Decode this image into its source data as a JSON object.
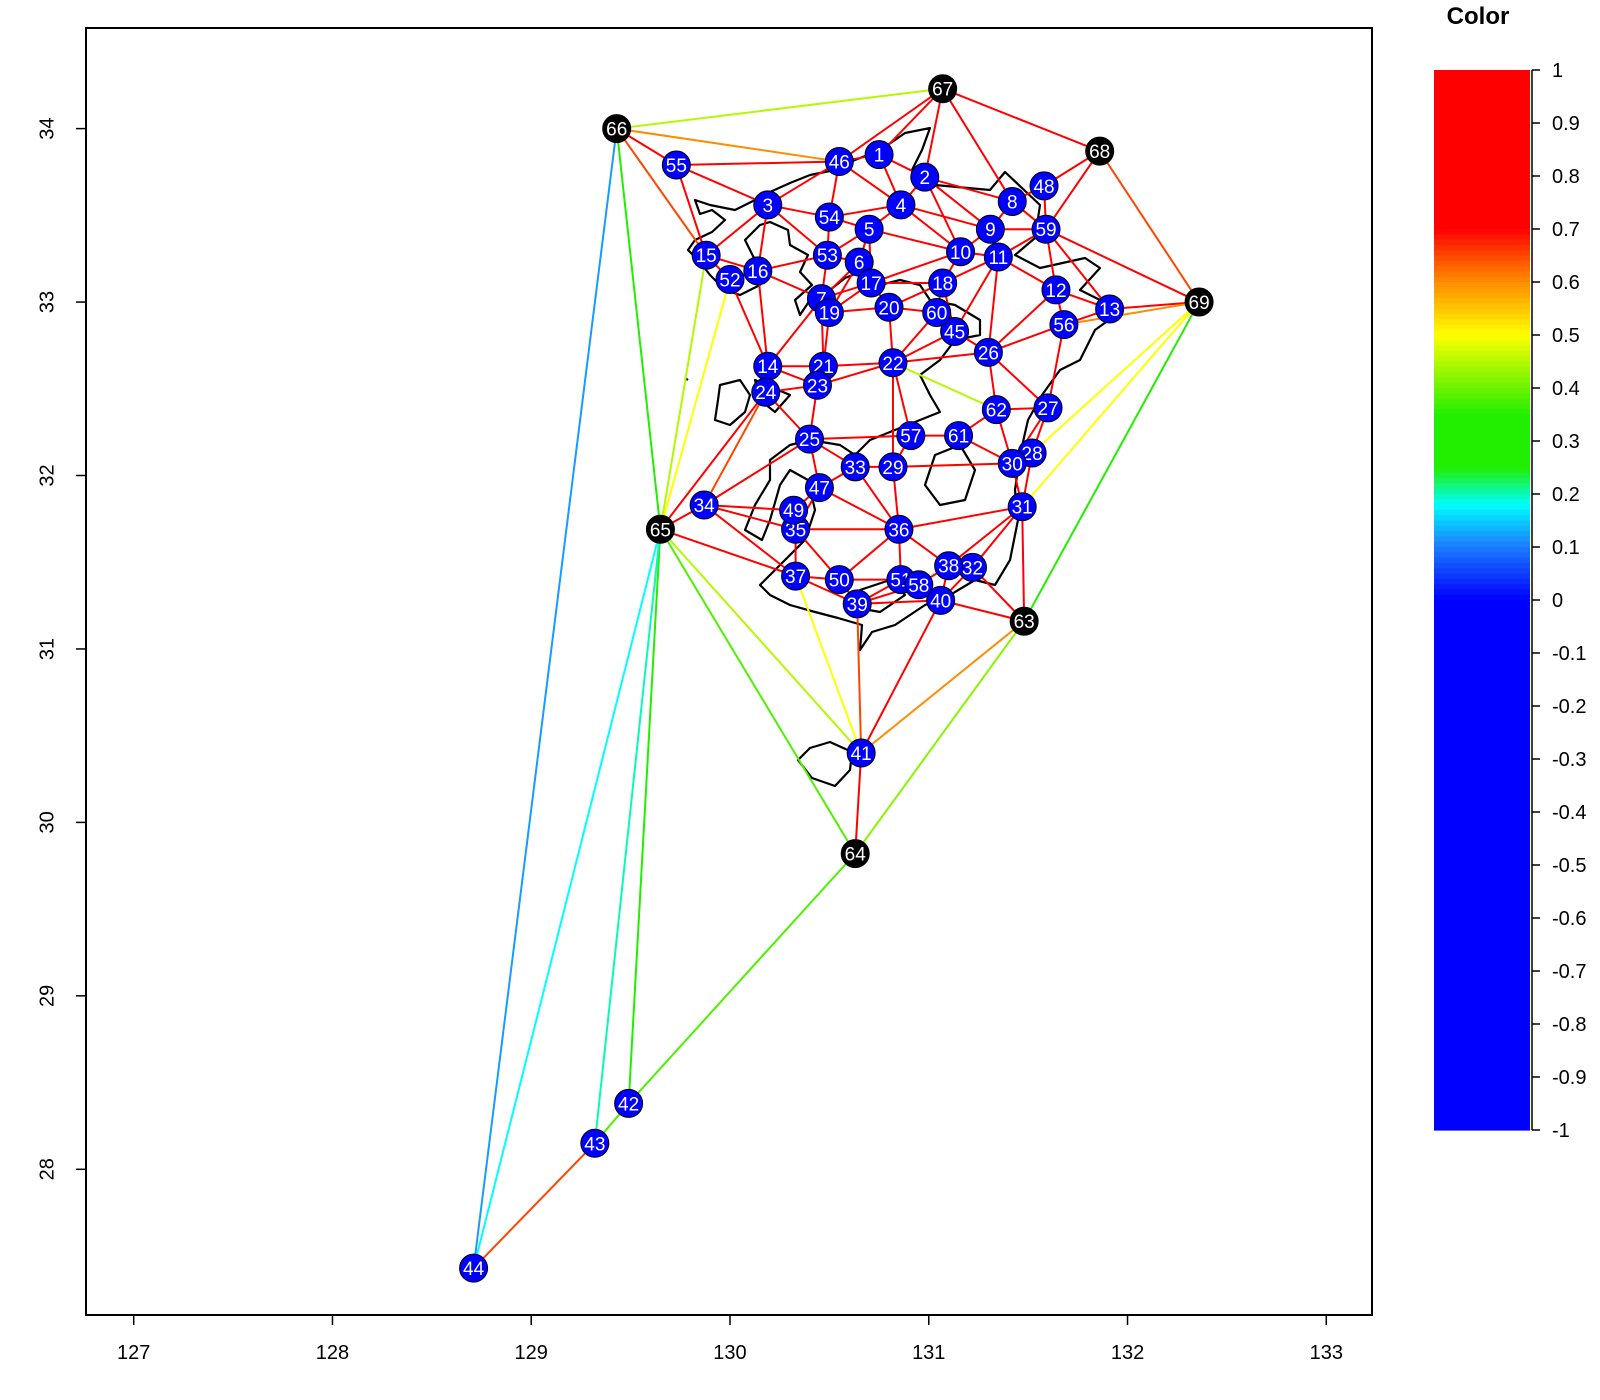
{
  "chart_data": {
    "type": "scatter",
    "title": "",
    "xlabel": "",
    "ylabel": "",
    "xlim": [
      126.76,
      133.23
    ],
    "ylim": [
      27.16,
      34.58
    ],
    "xticks": [
      "127",
      "128",
      "129",
      "130",
      "131",
      "132",
      "133"
    ],
    "yticks": [
      "28",
      "29",
      "30",
      "31",
      "32",
      "33",
      "34"
    ],
    "grid": false,
    "colors": {
      "station": "#0000ff",
      "boundary": "#000000",
      "label": "#ffffff",
      "outline": "#000000"
    },
    "nodes": [
      {
        "id": "1",
        "x": 130.75,
        "y": 33.85,
        "kind": "station"
      },
      {
        "id": "2",
        "x": 130.98,
        "y": 33.72,
        "kind": "station"
      },
      {
        "id": "3",
        "x": 130.19,
        "y": 33.56,
        "kind": "station"
      },
      {
        "id": "4",
        "x": 130.86,
        "y": 33.56,
        "kind": "station"
      },
      {
        "id": "5",
        "x": 130.7,
        "y": 33.42,
        "kind": "station"
      },
      {
        "id": "6",
        "x": 130.65,
        "y": 33.23,
        "kind": "station"
      },
      {
        "id": "7",
        "x": 130.46,
        "y": 33.02,
        "kind": "station"
      },
      {
        "id": "8",
        "x": 131.42,
        "y": 33.58,
        "kind": "station"
      },
      {
        "id": "9",
        "x": 131.31,
        "y": 33.42,
        "kind": "station"
      },
      {
        "id": "10",
        "x": 131.16,
        "y": 33.29,
        "kind": "station"
      },
      {
        "id": "11",
        "x": 131.35,
        "y": 33.26,
        "kind": "station"
      },
      {
        "id": "12",
        "x": 131.64,
        "y": 33.07,
        "kind": "station"
      },
      {
        "id": "13",
        "x": 131.91,
        "y": 32.96,
        "kind": "station"
      },
      {
        "id": "14",
        "x": 130.19,
        "y": 32.63,
        "kind": "station"
      },
      {
        "id": "15",
        "x": 129.88,
        "y": 33.27,
        "kind": "station"
      },
      {
        "id": "16",
        "x": 130.14,
        "y": 33.18,
        "kind": "station"
      },
      {
        "id": "17",
        "x": 130.71,
        "y": 33.11,
        "kind": "station"
      },
      {
        "id": "18",
        "x": 131.07,
        "y": 33.11,
        "kind": "station"
      },
      {
        "id": "19",
        "x": 130.5,
        "y": 32.94,
        "kind": "station"
      },
      {
        "id": "20",
        "x": 130.8,
        "y": 32.97,
        "kind": "station"
      },
      {
        "id": "21",
        "x": 130.47,
        "y": 32.63,
        "kind": "station"
      },
      {
        "id": "22",
        "x": 130.82,
        "y": 32.65,
        "kind": "station"
      },
      {
        "id": "23",
        "x": 130.44,
        "y": 32.52,
        "kind": "station"
      },
      {
        "id": "24",
        "x": 130.18,
        "y": 32.48,
        "kind": "station"
      },
      {
        "id": "25",
        "x": 130.4,
        "y": 32.21,
        "kind": "station"
      },
      {
        "id": "26",
        "x": 131.3,
        "y": 32.71,
        "kind": "station"
      },
      {
        "id": "27",
        "x": 131.6,
        "y": 32.39,
        "kind": "station"
      },
      {
        "id": "28",
        "x": 131.52,
        "y": 32.13,
        "kind": "station"
      },
      {
        "id": "29",
        "x": 130.82,
        "y": 32.05,
        "kind": "station"
      },
      {
        "id": "30",
        "x": 131.42,
        "y": 32.07,
        "kind": "station"
      },
      {
        "id": "31",
        "x": 131.47,
        "y": 31.82,
        "kind": "station"
      },
      {
        "id": "32",
        "x": 131.22,
        "y": 31.47,
        "kind": "station"
      },
      {
        "id": "33",
        "x": 130.63,
        "y": 32.05,
        "kind": "station"
      },
      {
        "id": "34",
        "x": 129.87,
        "y": 31.83,
        "kind": "station"
      },
      {
        "id": "35",
        "x": 130.33,
        "y": 31.69,
        "kind": "station"
      },
      {
        "id": "36",
        "x": 130.85,
        "y": 31.69,
        "kind": "station"
      },
      {
        "id": "37",
        "x": 130.33,
        "y": 31.42,
        "kind": "station"
      },
      {
        "id": "38",
        "x": 131.1,
        "y": 31.48,
        "kind": "station"
      },
      {
        "id": "39",
        "x": 130.64,
        "y": 31.26,
        "kind": "station"
      },
      {
        "id": "40",
        "x": 131.06,
        "y": 31.28,
        "kind": "station"
      },
      {
        "id": "41",
        "x": 130.66,
        "y": 30.4,
        "kind": "station"
      },
      {
        "id": "42",
        "x": 129.49,
        "y": 28.38,
        "kind": "station"
      },
      {
        "id": "43",
        "x": 129.32,
        "y": 28.15,
        "kind": "station"
      },
      {
        "id": "44",
        "x": 128.71,
        "y": 27.43,
        "kind": "station"
      },
      {
        "id": "45",
        "x": 131.13,
        "y": 32.83,
        "kind": "station"
      },
      {
        "id": "46",
        "x": 130.55,
        "y": 33.81,
        "kind": "station"
      },
      {
        "id": "47",
        "x": 130.45,
        "y": 31.93,
        "kind": "station"
      },
      {
        "id": "48",
        "x": 131.58,
        "y": 33.67,
        "kind": "station"
      },
      {
        "id": "49",
        "x": 130.32,
        "y": 31.8,
        "kind": "station"
      },
      {
        "id": "50",
        "x": 130.55,
        "y": 31.4,
        "kind": "station"
      },
      {
        "id": "51",
        "x": 130.86,
        "y": 31.4,
        "kind": "station"
      },
      {
        "id": "52",
        "x": 130.0,
        "y": 33.13,
        "kind": "station"
      },
      {
        "id": "53",
        "x": 130.49,
        "y": 33.27,
        "kind": "station"
      },
      {
        "id": "54",
        "x": 130.5,
        "y": 33.49,
        "kind": "station"
      },
      {
        "id": "55",
        "x": 129.73,
        "y": 33.79,
        "kind": "station"
      },
      {
        "id": "56",
        "x": 131.68,
        "y": 32.87,
        "kind": "station"
      },
      {
        "id": "57",
        "x": 130.91,
        "y": 32.23,
        "kind": "station"
      },
      {
        "id": "58",
        "x": 130.95,
        "y": 31.37,
        "kind": "station"
      },
      {
        "id": "59",
        "x": 131.59,
        "y": 33.42,
        "kind": "station"
      },
      {
        "id": "60",
        "x": 131.04,
        "y": 32.94,
        "kind": "station"
      },
      {
        "id": "61",
        "x": 131.15,
        "y": 32.23,
        "kind": "station"
      },
      {
        "id": "62",
        "x": 131.34,
        "y": 32.38,
        "kind": "station"
      },
      {
        "id": "63",
        "x": 131.48,
        "y": 31.16,
        "kind": "virtual"
      },
      {
        "id": "64",
        "x": 130.63,
        "y": 29.82,
        "kind": "virtual"
      },
      {
        "id": "65",
        "x": 129.65,
        "y": 31.69,
        "kind": "virtual"
      },
      {
        "id": "66",
        "x": 129.43,
        "y": 34.0,
        "kind": "virtual"
      },
      {
        "id": "67",
        "x": 131.07,
        "y": 34.23,
        "kind": "virtual"
      },
      {
        "id": "68",
        "x": 131.86,
        "y": 33.87,
        "kind": "virtual"
      },
      {
        "id": "69",
        "x": 132.36,
        "y": 33.0,
        "kind": "virtual"
      }
    ],
    "edges": [
      [
        "66",
        "67",
        0.45
      ],
      [
        "66",
        "46",
        0.6
      ],
      [
        "66",
        "55",
        0.8
      ],
      [
        "66",
        "15",
        0.65
      ],
      [
        "66",
        "65",
        0.3
      ],
      [
        "66",
        "44",
        0.12
      ],
      [
        "67",
        "1",
        0.9
      ],
      [
        "67",
        "2",
        0.9
      ],
      [
        "67",
        "8",
        0.9
      ],
      [
        "67",
        "68",
        0.7
      ],
      [
        "67",
        "46",
        0.9
      ],
      [
        "68",
        "48",
        0.9
      ],
      [
        "68",
        "69",
        0.65
      ],
      [
        "68",
        "59",
        0.9
      ],
      [
        "69",
        "13",
        0.9
      ],
      [
        "69",
        "59",
        0.7
      ],
      [
        "69",
        "56",
        0.6
      ],
      [
        "69",
        "28",
        0.5
      ],
      [
        "69",
        "31",
        0.5
      ],
      [
        "69",
        "63",
        0.35
      ],
      [
        "55",
        "46",
        0.9
      ],
      [
        "55",
        "3",
        0.9
      ],
      [
        "55",
        "15",
        0.9
      ],
      [
        "46",
        "1",
        0.9
      ],
      [
        "46",
        "3",
        0.9
      ],
      [
        "46",
        "4",
        0.9
      ],
      [
        "46",
        "54",
        0.9
      ],
      [
        "1",
        "2",
        0.9
      ],
      [
        "1",
        "4",
        0.9
      ],
      [
        "2",
        "4",
        0.9
      ],
      [
        "2",
        "8",
        0.9
      ],
      [
        "2",
        "10",
        0.9
      ],
      [
        "2",
        "9",
        0.9
      ],
      [
        "3",
        "54",
        0.9
      ],
      [
        "3",
        "16",
        0.9
      ],
      [
        "3",
        "15",
        0.9
      ],
      [
        "3",
        "53",
        0.9
      ],
      [
        "4",
        "54",
        0.9
      ],
      [
        "4",
        "5",
        0.9
      ],
      [
        "4",
        "10",
        0.9
      ],
      [
        "4",
        "9",
        0.9
      ],
      [
        "54",
        "5",
        0.9
      ],
      [
        "54",
        "53",
        0.9
      ],
      [
        "53",
        "5",
        0.9
      ],
      [
        "53",
        "6",
        0.9
      ],
      [
        "53",
        "7",
        0.9
      ],
      [
        "53",
        "16",
        0.9
      ],
      [
        "5",
        "6",
        0.9
      ],
      [
        "5",
        "10",
        0.9
      ],
      [
        "5",
        "17",
        0.9
      ],
      [
        "6",
        "17",
        0.9
      ],
      [
        "6",
        "7",
        0.9
      ],
      [
        "6",
        "19",
        0.9
      ],
      [
        "7",
        "19",
        0.9
      ],
      [
        "7",
        "16",
        0.9
      ],
      [
        "7",
        "14",
        0.9
      ],
      [
        "7",
        "21",
        0.9
      ],
      [
        "7",
        "17",
        0.9
      ],
      [
        "8",
        "48",
        0.9
      ],
      [
        "8",
        "59",
        0.9
      ],
      [
        "8",
        "9",
        0.9
      ],
      [
        "48",
        "59",
        0.9
      ],
      [
        "9",
        "10",
        0.9
      ],
      [
        "9",
        "11",
        0.9
      ],
      [
        "9",
        "59",
        0.9
      ],
      [
        "10",
        "11",
        0.9
      ],
      [
        "10",
        "18",
        0.9
      ],
      [
        "10",
        "17",
        0.9
      ],
      [
        "11",
        "59",
        0.9
      ],
      [
        "11",
        "12",
        0.9
      ],
      [
        "11",
        "26",
        0.9
      ],
      [
        "11",
        "18",
        0.9
      ],
      [
        "11",
        "45",
        0.9
      ],
      [
        "12",
        "59",
        0.9
      ],
      [
        "12",
        "13",
        0.9
      ],
      [
        "12",
        "56",
        0.9
      ],
      [
        "12",
        "26",
        0.9
      ],
      [
        "13",
        "56",
        0.9
      ],
      [
        "13",
        "59",
        0.9
      ],
      [
        "15",
        "16",
        0.9
      ],
      [
        "15",
        "52",
        0.9
      ],
      [
        "15",
        "65",
        0.45
      ],
      [
        "16",
        "52",
        0.9
      ],
      [
        "16",
        "14",
        0.9
      ],
      [
        "52",
        "14",
        0.9
      ],
      [
        "52",
        "65",
        0.5
      ],
      [
        "17",
        "20",
        0.9
      ],
      [
        "17",
        "18",
        0.9
      ],
      [
        "17",
        "19",
        0.9
      ],
      [
        "18",
        "20",
        0.9
      ],
      [
        "18",
        "60",
        0.9
      ],
      [
        "18",
        "45",
        0.9
      ],
      [
        "19",
        "20",
        0.9
      ],
      [
        "19",
        "21",
        0.9
      ],
      [
        "20",
        "60",
        0.9
      ],
      [
        "20",
        "22",
        0.9
      ],
      [
        "60",
        "45",
        0.9
      ],
      [
        "60",
        "22",
        0.9
      ],
      [
        "45",
        "26",
        0.9
      ],
      [
        "45",
        "22",
        0.9
      ],
      [
        "26",
        "56",
        0.9
      ],
      [
        "26",
        "62",
        0.9
      ],
      [
        "26",
        "27",
        0.7
      ],
      [
        "26",
        "22",
        0.9
      ],
      [
        "56",
        "27",
        0.9
      ],
      [
        "14",
        "21",
        0.9
      ],
      [
        "14",
        "24",
        0.9
      ],
      [
        "14",
        "23",
        0.9
      ],
      [
        "21",
        "23",
        0.9
      ],
      [
        "21",
        "22",
        0.9
      ],
      [
        "23",
        "24",
        0.9
      ],
      [
        "23",
        "25",
        0.9
      ],
      [
        "23",
        "22",
        0.9
      ],
      [
        "24",
        "25",
        0.9
      ],
      [
        "24",
        "65",
        0.7
      ],
      [
        "24",
        "34",
        0.65
      ],
      [
        "22",
        "57",
        0.7
      ],
      [
        "22",
        "62",
        0.45
      ],
      [
        "22",
        "29",
        0.9
      ],
      [
        "62",
        "27",
        0.9
      ],
      [
        "62",
        "61",
        0.9
      ],
      [
        "62",
        "30",
        0.9
      ],
      [
        "27",
        "28",
        0.9
      ],
      [
        "27",
        "30",
        0.9
      ],
      [
        "28",
        "30",
        0.9
      ],
      [
        "28",
        "31",
        0.9
      ],
      [
        "30",
        "31",
        0.9
      ],
      [
        "30",
        "61",
        0.9
      ],
      [
        "61",
        "57",
        0.9
      ],
      [
        "57",
        "29",
        0.9
      ],
      [
        "57",
        "25",
        0.9
      ],
      [
        "29",
        "33",
        0.9
      ],
      [
        "29",
        "30",
        0.9
      ],
      [
        "29",
        "36",
        0.9
      ],
      [
        "25",
        "33",
        0.9
      ],
      [
        "25",
        "47",
        0.9
      ],
      [
        "25",
        "34",
        0.9
      ],
      [
        "33",
        "47",
        0.9
      ],
      [
        "33",
        "36",
        0.9
      ],
      [
        "34",
        "49",
        0.9
      ],
      [
        "34",
        "35",
        0.9
      ],
      [
        "34",
        "37",
        0.9
      ],
      [
        "34",
        "65",
        0.9
      ],
      [
        "49",
        "47",
        0.9
      ],
      [
        "49",
        "35",
        0.9
      ],
      [
        "47",
        "35",
        0.9
      ],
      [
        "47",
        "36",
        0.9
      ],
      [
        "35",
        "37",
        0.9
      ],
      [
        "35",
        "36",
        0.9
      ],
      [
        "35",
        "50",
        0.9
      ],
      [
        "36",
        "31",
        0.75
      ],
      [
        "36",
        "51",
        0.9
      ],
      [
        "36",
        "38",
        0.9
      ],
      [
        "36",
        "50",
        0.9
      ],
      [
        "31",
        "32",
        0.9
      ],
      [
        "31",
        "38",
        0.9
      ],
      [
        "31",
        "63",
        0.9
      ],
      [
        "32",
        "38",
        0.9
      ],
      [
        "32",
        "63",
        0.9
      ],
      [
        "32",
        "40",
        0.9
      ],
      [
        "38",
        "58",
        0.9
      ],
      [
        "38",
        "40",
        0.9
      ],
      [
        "37",
        "50",
        0.9
      ],
      [
        "37",
        "39",
        0.9
      ],
      [
        "37",
        "41",
        0.5
      ],
      [
        "50",
        "51",
        0.9
      ],
      [
        "50",
        "39",
        0.9
      ],
      [
        "51",
        "58",
        0.9
      ],
      [
        "51",
        "39",
        0.9
      ],
      [
        "58",
        "40",
        0.9
      ],
      [
        "58",
        "39",
        0.9
      ],
      [
        "40",
        "39",
        0.9
      ],
      [
        "40",
        "63",
        0.9
      ],
      [
        "40",
        "41",
        0.9
      ],
      [
        "39",
        "41",
        0.65
      ],
      [
        "41",
        "63",
        0.6
      ],
      [
        "41",
        "64",
        0.9
      ],
      [
        "41",
        "65",
        0.45
      ],
      [
        "63",
        "64",
        0.42
      ],
      [
        "65",
        "64",
        0.38
      ],
      [
        "65",
        "37",
        0.9
      ],
      [
        "65",
        "42",
        0.28
      ],
      [
        "65",
        "43",
        0.2
      ],
      [
        "65",
        "44",
        0.18
      ],
      [
        "64",
        "42",
        0.38
      ],
      [
        "42",
        "43",
        0.38
      ],
      [
        "43",
        "44",
        0.65
      ]
    ],
    "colorbar": {
      "title": "Color",
      "range": [
        -1,
        1
      ],
      "ticks": [
        "1",
        "0.9",
        "0.8",
        "0.7",
        "0.6",
        "0.5",
        "0.4",
        "0.3",
        "0.2",
        "0.1",
        "0",
        "-0.1",
        "-0.2",
        "-0.3",
        "-0.4",
        "-0.5",
        "-0.6",
        "-0.7",
        "-0.8",
        "-0.9",
        "-1"
      ],
      "stops": [
        {
          "value": 1.0,
          "color": "#ff0000"
        },
        {
          "value": 0.7,
          "color": "#ff0000"
        },
        {
          "value": 0.6,
          "color": "#ff8c00"
        },
        {
          "value": 0.5,
          "color": "#ffff00"
        },
        {
          "value": 0.35,
          "color": "#22ee00"
        },
        {
          "value": 0.25,
          "color": "#22ee00"
        },
        {
          "value": 0.18,
          "color": "#00ffff"
        },
        {
          "value": 0.1,
          "color": "#1c7bff"
        },
        {
          "value": 0.0,
          "color": "#0000ff"
        },
        {
          "value": -1.0,
          "color": "#0000ff"
        }
      ]
    }
  }
}
